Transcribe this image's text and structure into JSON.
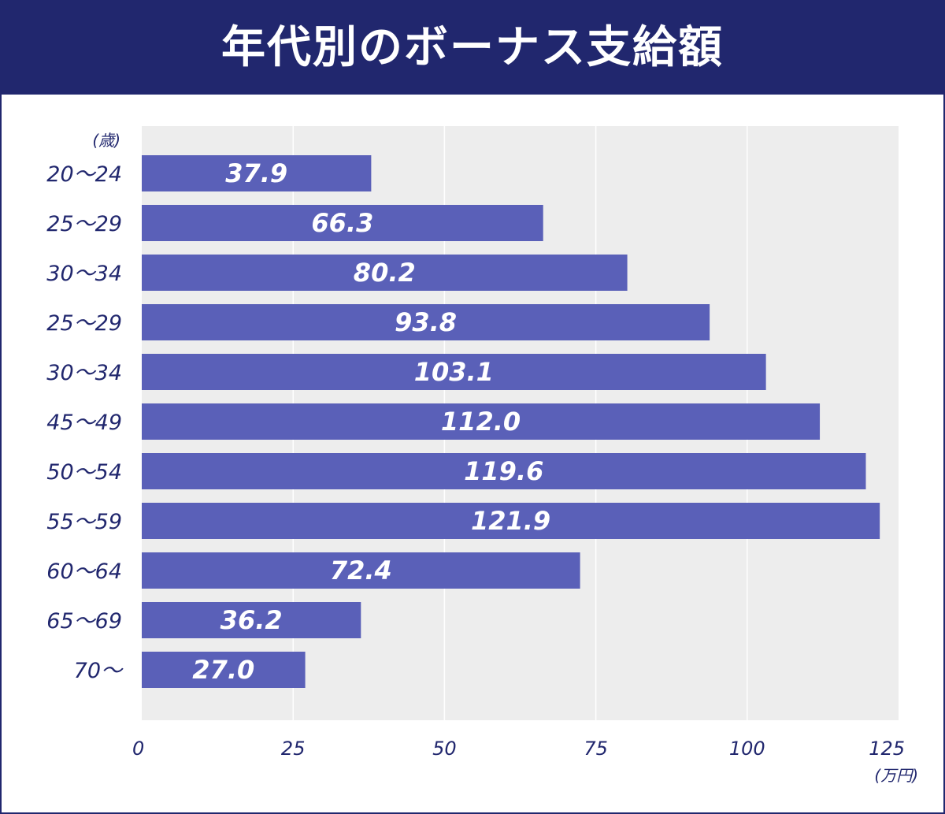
{
  "chart_data": {
    "type": "bar",
    "orientation": "horizontal",
    "title": "年代別のボーナス支給額",
    "ylabel": "(歳)",
    "xlabel": "(万円)",
    "categories": [
      "20～24",
      "25～29",
      "30～34",
      "25～29",
      "30～34",
      "45～49",
      "50～54",
      "55～59",
      "60～64",
      "65～69",
      "70～"
    ],
    "values": [
      37.9,
      66.3,
      80.2,
      93.8,
      103.1,
      112.0,
      119.6,
      121.9,
      72.4,
      36.2,
      27.0
    ],
    "value_labels": [
      "37.9",
      "66.3",
      "80.2",
      "93.8",
      "103.1",
      "112.0",
      "119.6",
      "121.9",
      "72.4",
      "36.2",
      "27.0"
    ],
    "xlim": [
      0,
      125
    ],
    "xticks": [
      0,
      25,
      50,
      75,
      100,
      125
    ],
    "grid": true,
    "colors": {
      "bar": "#5a60b8",
      "header": "#21276e",
      "plot_bg": "#ededed",
      "text": "#21276e"
    }
  }
}
